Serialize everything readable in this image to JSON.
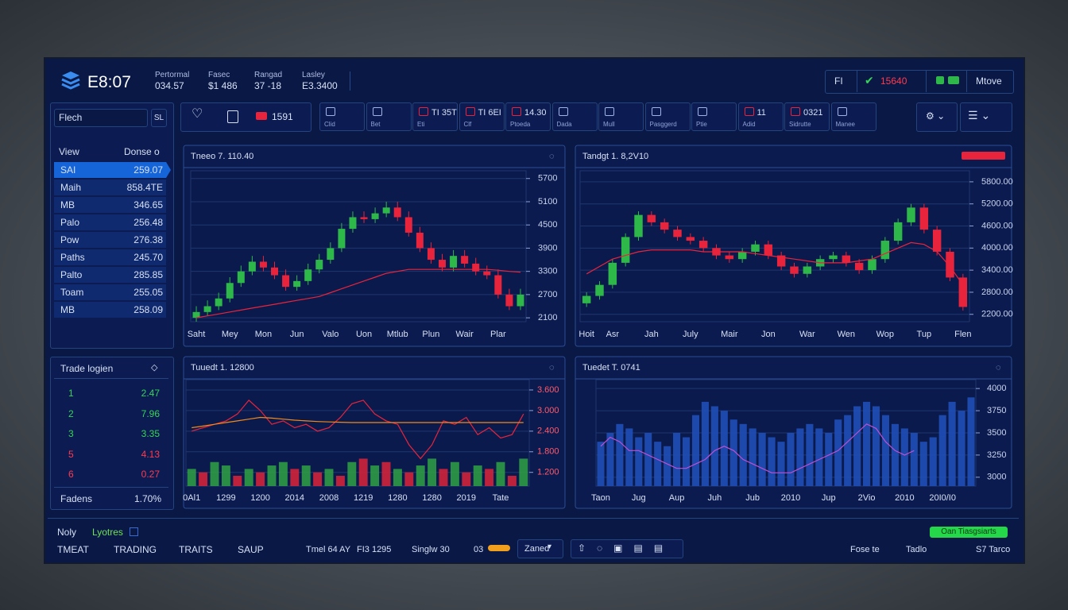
{
  "header": {
    "clock": "E8:07",
    "stats": [
      {
        "label": "Pertormal",
        "value": "034.57"
      },
      {
        "label": "Fasec",
        "value": "$1 486"
      },
      {
        "label": "Rangad",
        "value": "37 -18"
      },
      {
        "label": "Lasley",
        "value": "E3.3400"
      }
    ],
    "right": {
      "code": "FI",
      "price": "15640",
      "action": "Mtove"
    }
  },
  "toolbar": {
    "search": "Flech",
    "search_button": "SL",
    "badge": "1591",
    "buttons": [
      {
        "sub": "Clid"
      },
      {
        "sub": "Bet"
      },
      {
        "label": "TI 35T",
        "sub": "Eti"
      },
      {
        "label": "TI 6EI",
        "sub": "Clf"
      },
      {
        "label": "14.30",
        "sub": "Ptoeda"
      },
      {
        "sub": "Dada"
      },
      {
        "sub": "Mull"
      },
      {
        "sub": "Pasggerd"
      },
      {
        "sub": "Ptie"
      },
      {
        "label": "11",
        "sub": "Adid"
      },
      {
        "label": "0321",
        "sub": "Sidrutte"
      },
      {
        "sub": "Manee"
      }
    ]
  },
  "watchlist": {
    "headers": [
      "View",
      "Donse o"
    ],
    "rows": [
      [
        "SAI",
        "259.07"
      ],
      [
        "Maih",
        "858.4TE"
      ],
      [
        "MB",
        "346.65"
      ],
      [
        "Palo",
        "256.48"
      ],
      [
        "Pow",
        "276.38"
      ],
      [
        "Paths",
        "245.70"
      ],
      [
        "Palto",
        "285.85"
      ],
      [
        "Toam",
        "255.05"
      ],
      [
        "MB",
        "258.09"
      ]
    ]
  },
  "trades": {
    "title": "Trade logien",
    "rows": [
      {
        "n": "1",
        "v": "2.47",
        "color": "#36d457"
      },
      {
        "n": "2",
        "v": "7.96",
        "color": "#36d457"
      },
      {
        "n": "3",
        "v": "3.35",
        "color": "#36d457"
      },
      {
        "n": "5",
        "v": "4.13",
        "color": "#ff3b4e"
      },
      {
        "n": "6",
        "v": "0.27",
        "color": "#ff3b4e"
      }
    ],
    "footer": [
      "Fadens",
      "1.70%"
    ]
  },
  "footer": {
    "left": [
      "Noly",
      "Lyotres"
    ],
    "tabs": [
      "TMEAT",
      "TRADING",
      "TRAITS",
      "SAUP"
    ],
    "info": [
      "Tmel 64 AY",
      "FI3 1295",
      "Singlw 30",
      "03"
    ],
    "select": "Zaned",
    "right": [
      "Fose te",
      "Tadlo",
      "S7 Tarco"
    ],
    "button": "Oan Tiasgsiarts"
  },
  "chart_data": [
    {
      "type": "candlestick",
      "title": "Tneeo 7. 110.40",
      "categories": [
        "Saht",
        null,
        null,
        "Mey",
        null,
        null,
        "Mon",
        null,
        null,
        "Jun",
        null,
        null,
        "Valo",
        null,
        null,
        "Uon",
        null,
        null,
        "Mtlub",
        null,
        null,
        "Plun",
        null,
        null,
        "Wair",
        null,
        null,
        "Plar",
        null,
        null
      ],
      "open": [
        2100,
        2250,
        2400,
        2600,
        3000,
        3300,
        3550,
        3400,
        3200,
        2900,
        3050,
        3350,
        3600,
        3900,
        4400,
        4700,
        4650,
        4800,
        4950,
        4700,
        4300,
        3900,
        3600,
        3400,
        3700,
        3500,
        3300,
        3200,
        2700,
        2400
      ],
      "high": [
        2400,
        2550,
        2750,
        3150,
        3450,
        3700,
        3700,
        3550,
        3350,
        3200,
        3500,
        3750,
        4050,
        4550,
        4850,
        4850,
        4950,
        5100,
        5100,
        4850,
        4450,
        4050,
        3750,
        3850,
        3850,
        3650,
        3450,
        3350,
        2850,
        2850
      ],
      "low": [
        2000,
        2150,
        2300,
        2500,
        2900,
        3200,
        3300,
        3100,
        2800,
        2800,
        2950,
        3250,
        3500,
        3800,
        4300,
        4550,
        4550,
        4700,
        4600,
        4200,
        3800,
        3500,
        3300,
        3300,
        3400,
        3200,
        3100,
        2600,
        2300,
        2300
      ],
      "close": [
        2250,
        2400,
        2600,
        3000,
        3300,
        3550,
        3400,
        3200,
        2900,
        3050,
        3350,
        3600,
        3900,
        4400,
        4700,
        4650,
        4800,
        4950,
        4700,
        4300,
        3900,
        3600,
        3400,
        3700,
        3500,
        3300,
        3200,
        2700,
        2400,
        2700
      ],
      "up_color": "#2fb84a",
      "down_color": "#e8243c",
      "lines": [
        {
          "color": "#e8243c",
          "values": [
            2100,
            2150,
            2200,
            2250,
            2300,
            2350,
            2400,
            2450,
            2500,
            2550,
            2600,
            2650,
            2750,
            2850,
            2950,
            3050,
            3150,
            3250,
            3300,
            3350,
            3350,
            3350,
            3350,
            3350,
            3350,
            3350,
            3350,
            3330,
            3300,
            3280
          ]
        }
      ],
      "ylim": [
        2000,
        5900
      ],
      "yticks": [
        2100,
        2700,
        3300,
        3900,
        4500,
        5100,
        5700
      ],
      "tick_color": "#c8d4ee",
      "grid": true
    },
    {
      "type": "candlestick",
      "title": "Tandgt 1. 8,2V10",
      "categories": [
        "Hoit",
        null,
        "Asr",
        null,
        null,
        "Jah",
        null,
        null,
        "July",
        null,
        null,
        "Mair",
        null,
        null,
        "Jon",
        null,
        null,
        "War",
        null,
        null,
        "Wen",
        null,
        null,
        "Wop",
        null,
        null,
        "Tup",
        null,
        null,
        "Flen"
      ],
      "open": [
        2500,
        2700,
        3000,
        3600,
        4300,
        4900,
        4700,
        4500,
        4300,
        4200,
        4000,
        3800,
        3700,
        3900,
        4100,
        3800,
        3500,
        3300,
        3500,
        3700,
        3800,
        3600,
        3400,
        3700,
        4200,
        4700,
        5100,
        4500,
        3900,
        3200
      ],
      "high": [
        2800,
        3100,
        3700,
        4400,
        5000,
        5000,
        4800,
        4600,
        4400,
        4300,
        4100,
        3900,
        4000,
        4200,
        4200,
        3900,
        3600,
        3600,
        3800,
        3900,
        3900,
        3700,
        3800,
        4300,
        4800,
        5200,
        5200,
        4600,
        4000,
        3300
      ],
      "low": [
        2400,
        2600,
        2900,
        3500,
        4200,
        4600,
        4400,
        4200,
        4100,
        3900,
        3700,
        3600,
        3600,
        3800,
        3700,
        3400,
        3200,
        3200,
        3400,
        3600,
        3500,
        3300,
        3300,
        3600,
        4100,
        4600,
        4400,
        3800,
        3100,
        2300
      ],
      "close": [
        2700,
        3000,
        3600,
        4300,
        4900,
        4700,
        4500,
        4300,
        4200,
        4000,
        3800,
        3700,
        3900,
        4100,
        3800,
        3500,
        3300,
        3500,
        3700,
        3800,
        3600,
        3400,
        3700,
        4200,
        4700,
        5100,
        4500,
        3900,
        3200,
        2400
      ],
      "up_color": "#2fb84a",
      "down_color": "#e8243c",
      "lines": [
        {
          "color": "#e8243c",
          "values": [
            3300,
            3500,
            3700,
            3800,
            3900,
            3950,
            3950,
            3950,
            3950,
            3900,
            3900,
            3900,
            3900,
            3850,
            3800,
            3750,
            3700,
            3650,
            3600,
            3600,
            3600,
            3650,
            3700,
            3850,
            4000,
            4150,
            4100,
            3900,
            3500,
            3000
          ]
        }
      ],
      "ylim": [
        2000,
        6100
      ],
      "yticks": [
        {
          "value": 2200,
          "label": "2200.00"
        },
        {
          "value": 2800,
          "label": "2800.00"
        },
        {
          "value": 3400,
          "label": "3400.00"
        },
        {
          "value": 4000,
          "label": "4000.00"
        },
        {
          "value": 4600,
          "label": "4600.00"
        },
        {
          "value": 5200,
          "label": "5200.00"
        },
        {
          "value": 5800,
          "label": "5800.00"
        }
      ],
      "tick_color": "#c8d4ee",
      "grid": true
    },
    {
      "type": "bar",
      "title": "Tuuedt 1. 12800",
      "categories": [
        "0Al1",
        null,
        null,
        "1299",
        null,
        null,
        "1200",
        null,
        null,
        "2014",
        null,
        null,
        "2008",
        null,
        null,
        "1219",
        null,
        null,
        "1280",
        null,
        null,
        "1280",
        null,
        null,
        "2019",
        null,
        null,
        "Tate",
        null,
        null
      ],
      "values": [
        1.3,
        1.2,
        1.5,
        1.4,
        1.1,
        1.3,
        1.2,
        1.4,
        1.5,
        1.3,
        1.4,
        1.2,
        1.3,
        1.1,
        1.5,
        1.6,
        1.4,
        1.5,
        1.3,
        1.2,
        1.4,
        1.6,
        1.3,
        1.5,
        1.2,
        1.4,
        1.3,
        1.5,
        1.1,
        1.6
      ],
      "bar_colors": [
        "#2e9a46",
        "#d0243c",
        "#2e9a46",
        "#2e9a46",
        "#d0243c",
        "#2e9a46",
        "#d0243c",
        "#2e9a46",
        "#2e9a46",
        "#d0243c",
        "#2e9a46",
        "#d0243c",
        "#2e9a46",
        "#d0243c",
        "#2e9a46",
        "#d0243c",
        "#2e9a46",
        "#d0243c",
        "#2e9a46",
        "#d0243c",
        "#2e9a46",
        "#2e9a46",
        "#d0243c",
        "#2e9a46",
        "#d0243c",
        "#2e9a46",
        "#d0243c",
        "#2e9a46",
        "#d0243c",
        "#2e9a46"
      ],
      "lines": [
        {
          "color": "#e8243c",
          "values": [
            2.4,
            2.5,
            2.6,
            2.7,
            2.9,
            3.3,
            3.0,
            2.6,
            2.7,
            2.5,
            2.6,
            2.4,
            2.5,
            2.8,
            3.2,
            3.3,
            2.9,
            2.7,
            2.6,
            2.0,
            1.6,
            2.0,
            2.7,
            2.6,
            2.8,
            2.3,
            2.5,
            2.2,
            2.3,
            2.9
          ]
        },
        {
          "color": "#f08a1c",
          "values": [
            2.5,
            2.55,
            2.6,
            2.65,
            2.7,
            2.75,
            2.8,
            2.78,
            2.75,
            2.72,
            2.7,
            2.68,
            2.67,
            2.66,
            2.65,
            2.65,
            2.65,
            2.65,
            2.65,
            2.65,
            2.65,
            2.65,
            2.65,
            2.65,
            2.65,
            2.65,
            2.65,
            2.65,
            2.65,
            2.65
          ]
        }
      ],
      "ylim": [
        0.8,
        3.9
      ],
      "yticks": [
        {
          "value": 1.2,
          "label": "1.200"
        },
        {
          "value": 1.8,
          "label": "1.800"
        },
        {
          "value": 2.4,
          "label": "2.400"
        },
        {
          "value": 3.0,
          "label": "3.000"
        },
        {
          "value": 3.6,
          "label": "3.600"
        }
      ],
      "tick_color": "#ff5a6a",
      "grid": true
    },
    {
      "type": "bar",
      "title": "Tuedet T. 0741",
      "categories": [
        "Taon",
        null,
        null,
        null,
        "Jug",
        null,
        null,
        null,
        "Aup",
        null,
        null,
        null,
        "Juh",
        null,
        null,
        null,
        "Jub",
        null,
        null,
        null,
        "2010",
        null,
        null,
        null,
        "Jup",
        null,
        null,
        null,
        "2Vio",
        null,
        null,
        null,
        "2010",
        null,
        null,
        null,
        "20I0/I0",
        null,
        null,
        null
      ],
      "values": [
        3400,
        3500,
        3600,
        3550,
        3450,
        3500,
        3400,
        3350,
        3500,
        3450,
        3700,
        3850,
        3800,
        3750,
        3650,
        3600,
        3550,
        3500,
        3450,
        3400,
        3500,
        3550,
        3600,
        3550,
        3500,
        3650,
        3700,
        3800,
        3850,
        3800,
        3700,
        3600,
        3550,
        3500,
        3400,
        3450,
        3700,
        3850,
        3750,
        3900
      ],
      "color": "#1f4fb8",
      "lines": [
        {
          "color": "#c04fd0",
          "values": [
            3350,
            3450,
            3400,
            3300,
            3300,
            3250,
            3200,
            3150,
            3100,
            3100,
            3150,
            3200,
            3300,
            3350,
            3300,
            3200,
            3150,
            3100,
            3050,
            3050,
            3050,
            3100,
            3150,
            3200,
            3250,
            3300,
            3400,
            3500,
            3600,
            3550,
            3400,
            3300,
            3250,
            3300,
            null,
            null,
            null,
            null,
            null,
            null
          ]
        }
      ],
      "ylim": [
        2900,
        4100
      ],
      "yticks": [
        3000,
        3250,
        3500,
        3750,
        4000
      ],
      "tick_color": "#c8d4ee",
      "grid": true
    }
  ]
}
